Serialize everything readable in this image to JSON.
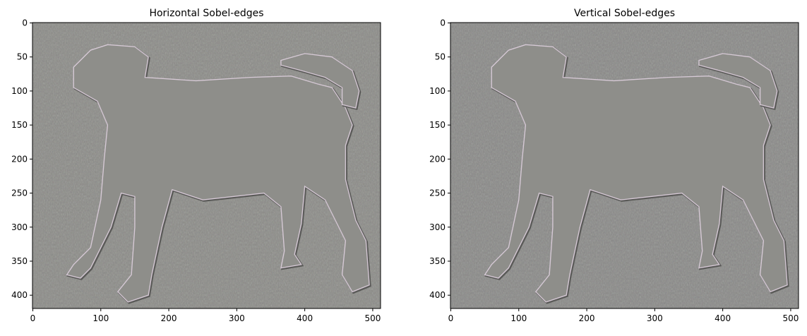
{
  "chart_data": [
    {
      "type": "image",
      "title": "Horizontal Sobel-edges",
      "image_description_content": "sobel edge map of a standing dog, grey background",
      "xlim": [
        -0.5,
        511.5
      ],
      "ylim": [
        419.5,
        -0.5
      ],
      "xticks": [
        0,
        100,
        200,
        300,
        400,
        500
      ],
      "yticks": [
        0,
        50,
        100,
        150,
        200,
        250,
        300,
        350,
        400
      ],
      "background_color": "#8a8a86",
      "edge_highlight_color": "#e8d8e8"
    },
    {
      "type": "image",
      "title": "Vertical Sobel-edges",
      "xlim": [
        -0.5,
        511.5
      ],
      "ylim": [
        419.5,
        -0.5
      ],
      "xticks": [
        0,
        100,
        200,
        300,
        400,
        500
      ],
      "yticks": [
        0,
        50,
        100,
        150,
        200,
        250,
        300,
        350,
        400
      ],
      "background_color": "#888886",
      "edge_highlight_color": "#e8d8e8"
    }
  ]
}
